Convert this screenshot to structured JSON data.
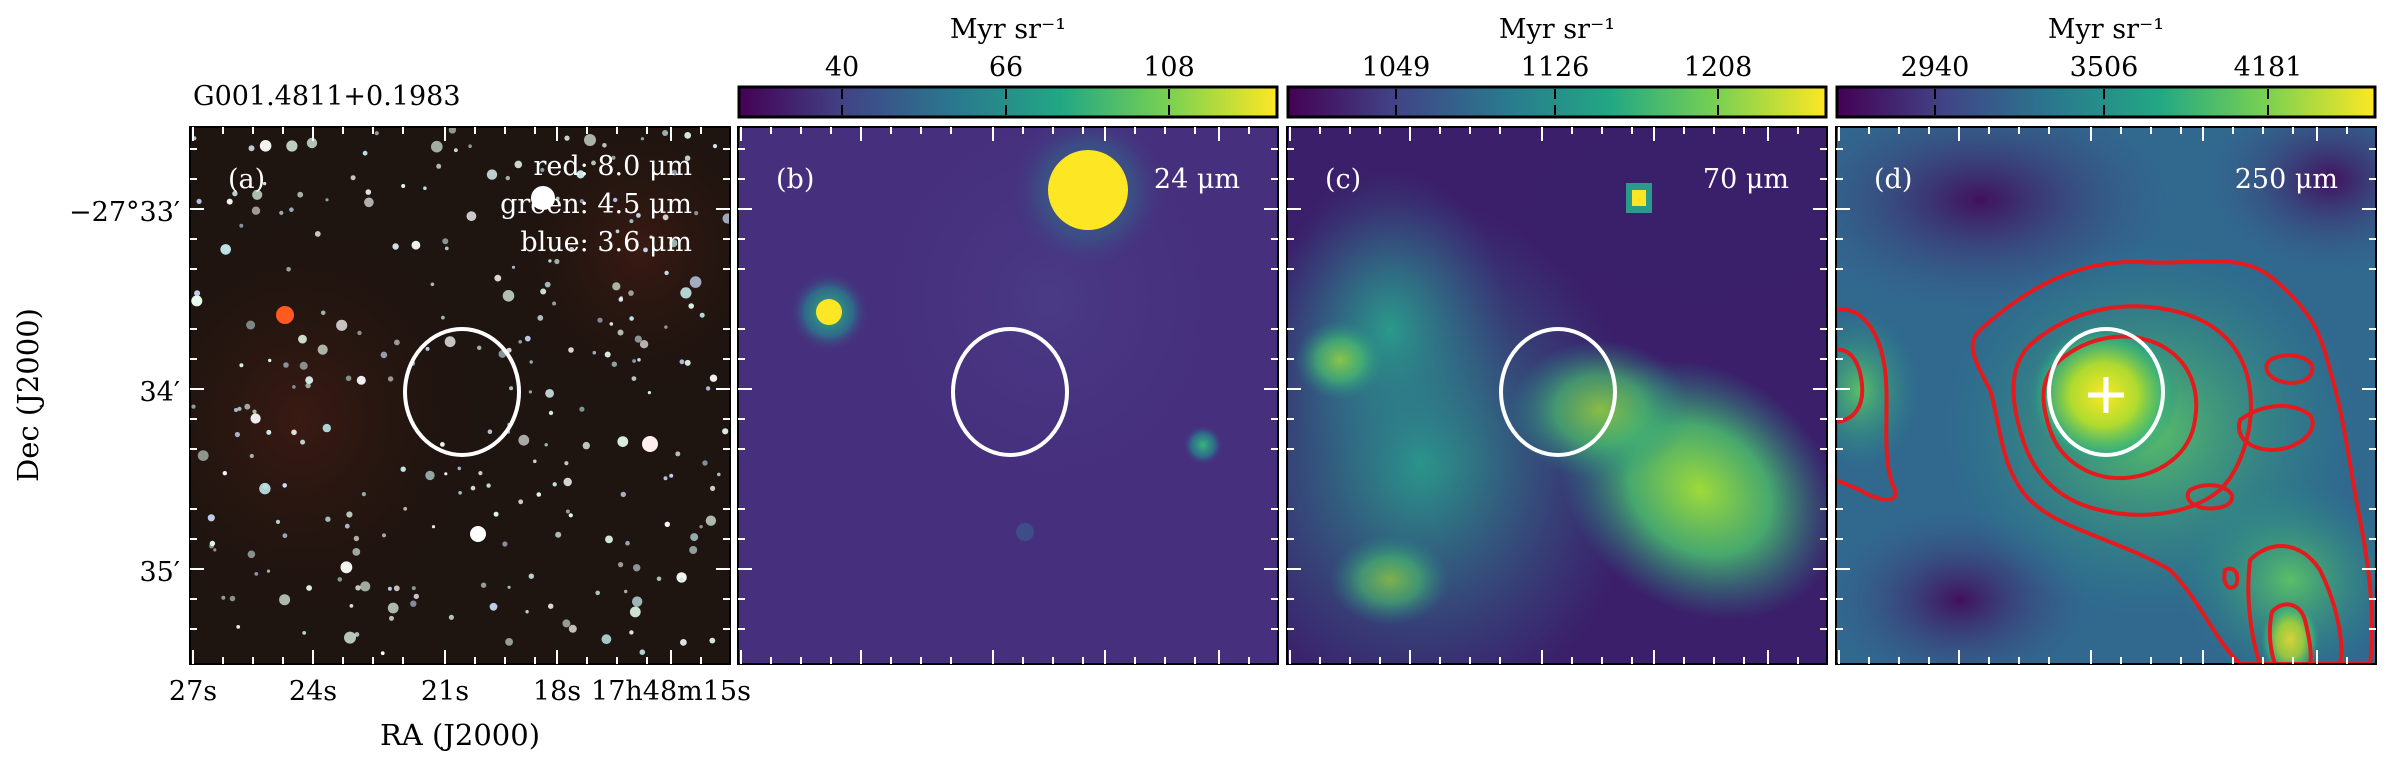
{
  "figure": {
    "source_name": "G001.4811+0.1983",
    "xlabel": "RA (J2000)",
    "ylabel": "Dec (J2000)",
    "ra_ticks": [
      "27s",
      "24s",
      "21s",
      "18s",
      "17h48m15s"
    ],
    "dec_ticks": [
      "−27°33′",
      "34′",
      "35′"
    ],
    "colorbar_unit": "Myr sr⁻¹",
    "panels": [
      {
        "id": "a",
        "label": "(a)",
        "legend": [
          "red: 8.0 μm",
          "green: 4.5 μm",
          "blue: 3.6 μm"
        ],
        "colorbar": null,
        "colors": {
          "background": "#1e1410",
          "star": "#d8f0f0",
          "red_source": "#ff5a20"
        }
      },
      {
        "id": "b",
        "label": "(b)",
        "band": "24 μm",
        "colorbar": {
          "unit": "Myr sr⁻¹",
          "ticks": [
            "40",
            "66",
            "108"
          ]
        },
        "colors": {
          "background": "#46307e",
          "bright": "#fde725"
        }
      },
      {
        "id": "c",
        "label": "(c)",
        "band": "70 μm",
        "colorbar": {
          "unit": "Myr sr⁻¹",
          "ticks": [
            "1049",
            "1126",
            "1208"
          ]
        },
        "colors": {
          "background": "#3b1f6a",
          "filament": "#7ad151"
        }
      },
      {
        "id": "d",
        "label": "(d)",
        "band": "250 μm",
        "colorbar": {
          "unit": "Myr sr⁻¹",
          "ticks": [
            "2940",
            "3506",
            "4181"
          ]
        },
        "colors": {
          "background": "#31688e",
          "peak": "#fde725",
          "contour": "#e41a1c"
        }
      }
    ],
    "colormap": "viridis",
    "annotations": {
      "ellipse_color": "#ffffff",
      "marker": "+"
    }
  }
}
